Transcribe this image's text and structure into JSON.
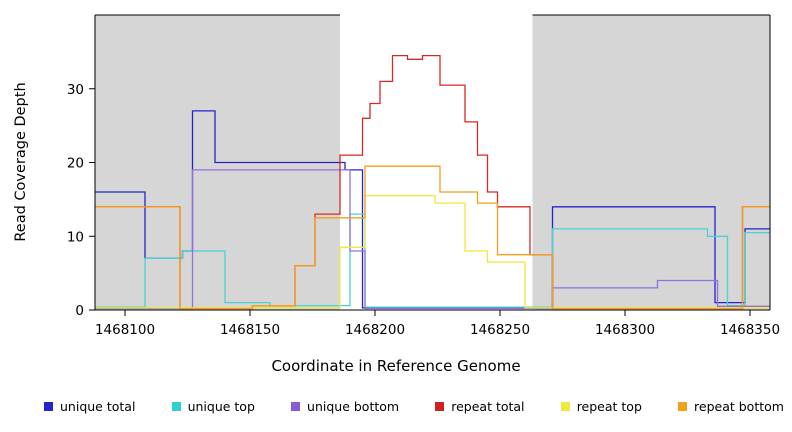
{
  "figure": {
    "y_axis_label": "Read Coverage Depth",
    "x_axis_label": "Coordinate in Reference Genome"
  },
  "chart_data": {
    "type": "line",
    "subtype": "step-coverage",
    "title": "",
    "xlabel": "Coordinate in Reference Genome",
    "ylabel": "Read Coverage Depth",
    "x_axis": {
      "range": [
        1468088,
        1468358
      ],
      "ticks": [
        1468100,
        1468150,
        1468200,
        1468250,
        1468300,
        1468350
      ]
    },
    "y_axis": {
      "range": [
        0,
        40
      ],
      "ticks": [
        0,
        10,
        20,
        30
      ]
    },
    "background": {
      "plot_bg": "#d6d6d6",
      "highlight_region": {
        "x_start": 1468186,
        "x_end": 1468263,
        "color": "#ffffff"
      }
    },
    "series": [
      {
        "name": "unique total",
        "color": "#2424cd",
        "points": [
          [
            1468088,
            16
          ],
          [
            1468108,
            7
          ],
          [
            1468123,
            8
          ],
          [
            1468127,
            27
          ],
          [
            1468136,
            20
          ],
          [
            1468188,
            19
          ],
          [
            1468195,
            0.3
          ],
          [
            1468271,
            14
          ],
          [
            1468336,
            1
          ],
          [
            1468348,
            11
          ]
        ]
      },
      {
        "name": "unique top",
        "color": "#49d3d3",
        "points": [
          [
            1468088,
            0.4
          ],
          [
            1468108,
            7
          ],
          [
            1468123,
            8
          ],
          [
            1468140,
            1
          ],
          [
            1468158,
            0.6
          ],
          [
            1468190,
            13
          ],
          [
            1468196,
            0.4
          ],
          [
            1468271,
            11
          ],
          [
            1468333,
            10
          ],
          [
            1468341,
            0.6
          ],
          [
            1468348,
            10.5
          ]
        ]
      },
      {
        "name": "unique bottom",
        "color": "#9370db",
        "points": [
          [
            1468088,
            0.2
          ],
          [
            1468127,
            19
          ],
          [
            1468190,
            8
          ],
          [
            1468196,
            0.2
          ],
          [
            1468271,
            3
          ],
          [
            1468313,
            4
          ],
          [
            1468337,
            0.5
          ]
        ]
      },
      {
        "name": "repeat total",
        "color": "#d62929",
        "points": [
          [
            1468088,
            14
          ],
          [
            1468122,
            0.2
          ],
          [
            1468151,
            0.6
          ],
          [
            1468168,
            6
          ],
          [
            1468176,
            13
          ],
          [
            1468186,
            21
          ],
          [
            1468195,
            26
          ],
          [
            1468198,
            28
          ],
          [
            1468202,
            31
          ],
          [
            1468207,
            34.5
          ],
          [
            1468213,
            34
          ],
          [
            1468219,
            34.5
          ],
          [
            1468226,
            30.5
          ],
          [
            1468236,
            25.5
          ],
          [
            1468241,
            21
          ],
          [
            1468245,
            16
          ],
          [
            1468249,
            14
          ],
          [
            1468262,
            7.5
          ],
          [
            1468271,
            0.2
          ],
          [
            1468347,
            14
          ]
        ]
      },
      {
        "name": "repeat top",
        "color": "#f0e83c",
        "points": [
          [
            1468088,
            0.3
          ],
          [
            1468186,
            8.5
          ],
          [
            1468196,
            15.5
          ],
          [
            1468224,
            14.5
          ],
          [
            1468236,
            8
          ],
          [
            1468245,
            6.5
          ],
          [
            1468260,
            0.3
          ]
        ]
      },
      {
        "name": "repeat bottom",
        "color": "#f59f1e",
        "points": [
          [
            1468088,
            14
          ],
          [
            1468122,
            0.2
          ],
          [
            1468151,
            0.6
          ],
          [
            1468168,
            6
          ],
          [
            1468176,
            12.5
          ],
          [
            1468196,
            19.5
          ],
          [
            1468226,
            16
          ],
          [
            1468241,
            14.5
          ],
          [
            1468249,
            7.5
          ],
          [
            1468271,
            0.2
          ],
          [
            1468347,
            14
          ]
        ]
      }
    ],
    "legend": [
      {
        "label": "unique total",
        "color": "#2424cd"
      },
      {
        "label": "unique top",
        "color": "#2ed1d1"
      },
      {
        "label": "unique bottom",
        "color": "#8a5bd6"
      },
      {
        "label": "repeat total",
        "color": "#cc2222"
      },
      {
        "label": "repeat top",
        "color": "#f0e83c"
      },
      {
        "label": "repeat bottom",
        "color": "#f59f1e"
      }
    ],
    "legend_position": "bottom",
    "grid": false
  }
}
